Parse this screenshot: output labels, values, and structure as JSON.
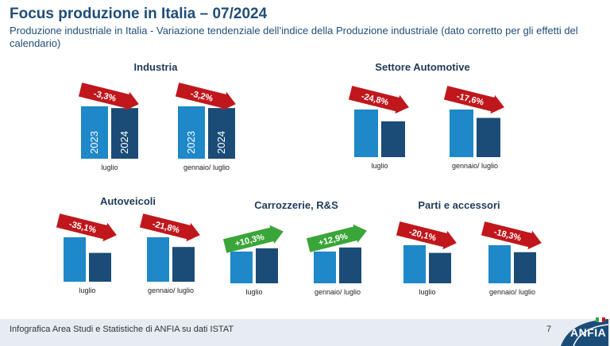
{
  "header": {
    "title": "Focus produzione in Italia – 07/2024",
    "subtitle": "Produzione industriale in Italia - Variazione tendenziale dell’indice della Produzione industriale (dato corretto per gli effetti del calendario)"
  },
  "footer": {
    "source": "Infografica Area Studi e Statistiche di ANFIA su dati ISTAT",
    "page": "7",
    "logo_text": "ANFIA"
  },
  "colors": {
    "bar_2023": "#1e88c8",
    "bar_2024": "#1b4c78",
    "arrow_negative": "#c0171c",
    "arrow_positive": "#3aa538"
  },
  "chart_data": [
    {
      "type": "bar",
      "title": "Industria",
      "series_labels": [
        "2023",
        "2024"
      ],
      "show_year_labels": true,
      "groups": [
        {
          "category": "luglio",
          "values": [
            100,
            96.7
          ],
          "change_label": "-3,3%",
          "direction": "down"
        },
        {
          "category": "gennaio/ luglio",
          "values": [
            100,
            96.8
          ],
          "change_label": "-3,2%",
          "direction": "down"
        }
      ]
    },
    {
      "type": "bar",
      "title": "Settore Automotive",
      "series_labels": [
        "2023",
        "2024"
      ],
      "show_year_labels": false,
      "groups": [
        {
          "category": "luglio",
          "values": [
            100,
            75.2
          ],
          "change_label": "-24,8%",
          "direction": "down"
        },
        {
          "category": "gennaio/ luglio",
          "values": [
            100,
            82.4
          ],
          "change_label": "-17,6%",
          "direction": "down"
        }
      ]
    },
    {
      "type": "bar",
      "title": "Autoveicoli",
      "series_labels": [
        "2023",
        "2024"
      ],
      "show_year_labels": false,
      "groups": [
        {
          "category": "luglio",
          "values": [
            100,
            64.9
          ],
          "change_label": "-35,1%",
          "direction": "down"
        },
        {
          "category": "gennaio/ luglio",
          "values": [
            100,
            78.2
          ],
          "change_label": "-21,8%",
          "direction": "down"
        }
      ]
    },
    {
      "type": "bar",
      "title": "Carrozzerie, R&S",
      "series_labels": [
        "2023",
        "2024"
      ],
      "show_year_labels": false,
      "groups": [
        {
          "category": "luglio",
          "values": [
            100,
            110.3
          ],
          "change_label": "+10,3%",
          "direction": "up"
        },
        {
          "category": "gennaio/ luglio",
          "values": [
            100,
            112.9
          ],
          "change_label": "+12,9%",
          "direction": "up"
        }
      ]
    },
    {
      "type": "bar",
      "title": "Parti e accessori",
      "series_labels": [
        "2023",
        "2024"
      ],
      "show_year_labels": false,
      "groups": [
        {
          "category": "luglio",
          "values": [
            100,
            79.9
          ],
          "change_label": "-20,1%",
          "direction": "down"
        },
        {
          "category": "gennaio/ luglio",
          "values": [
            100,
            81.7
          ],
          "change_label": "-18,3%",
          "direction": "down"
        }
      ]
    }
  ]
}
